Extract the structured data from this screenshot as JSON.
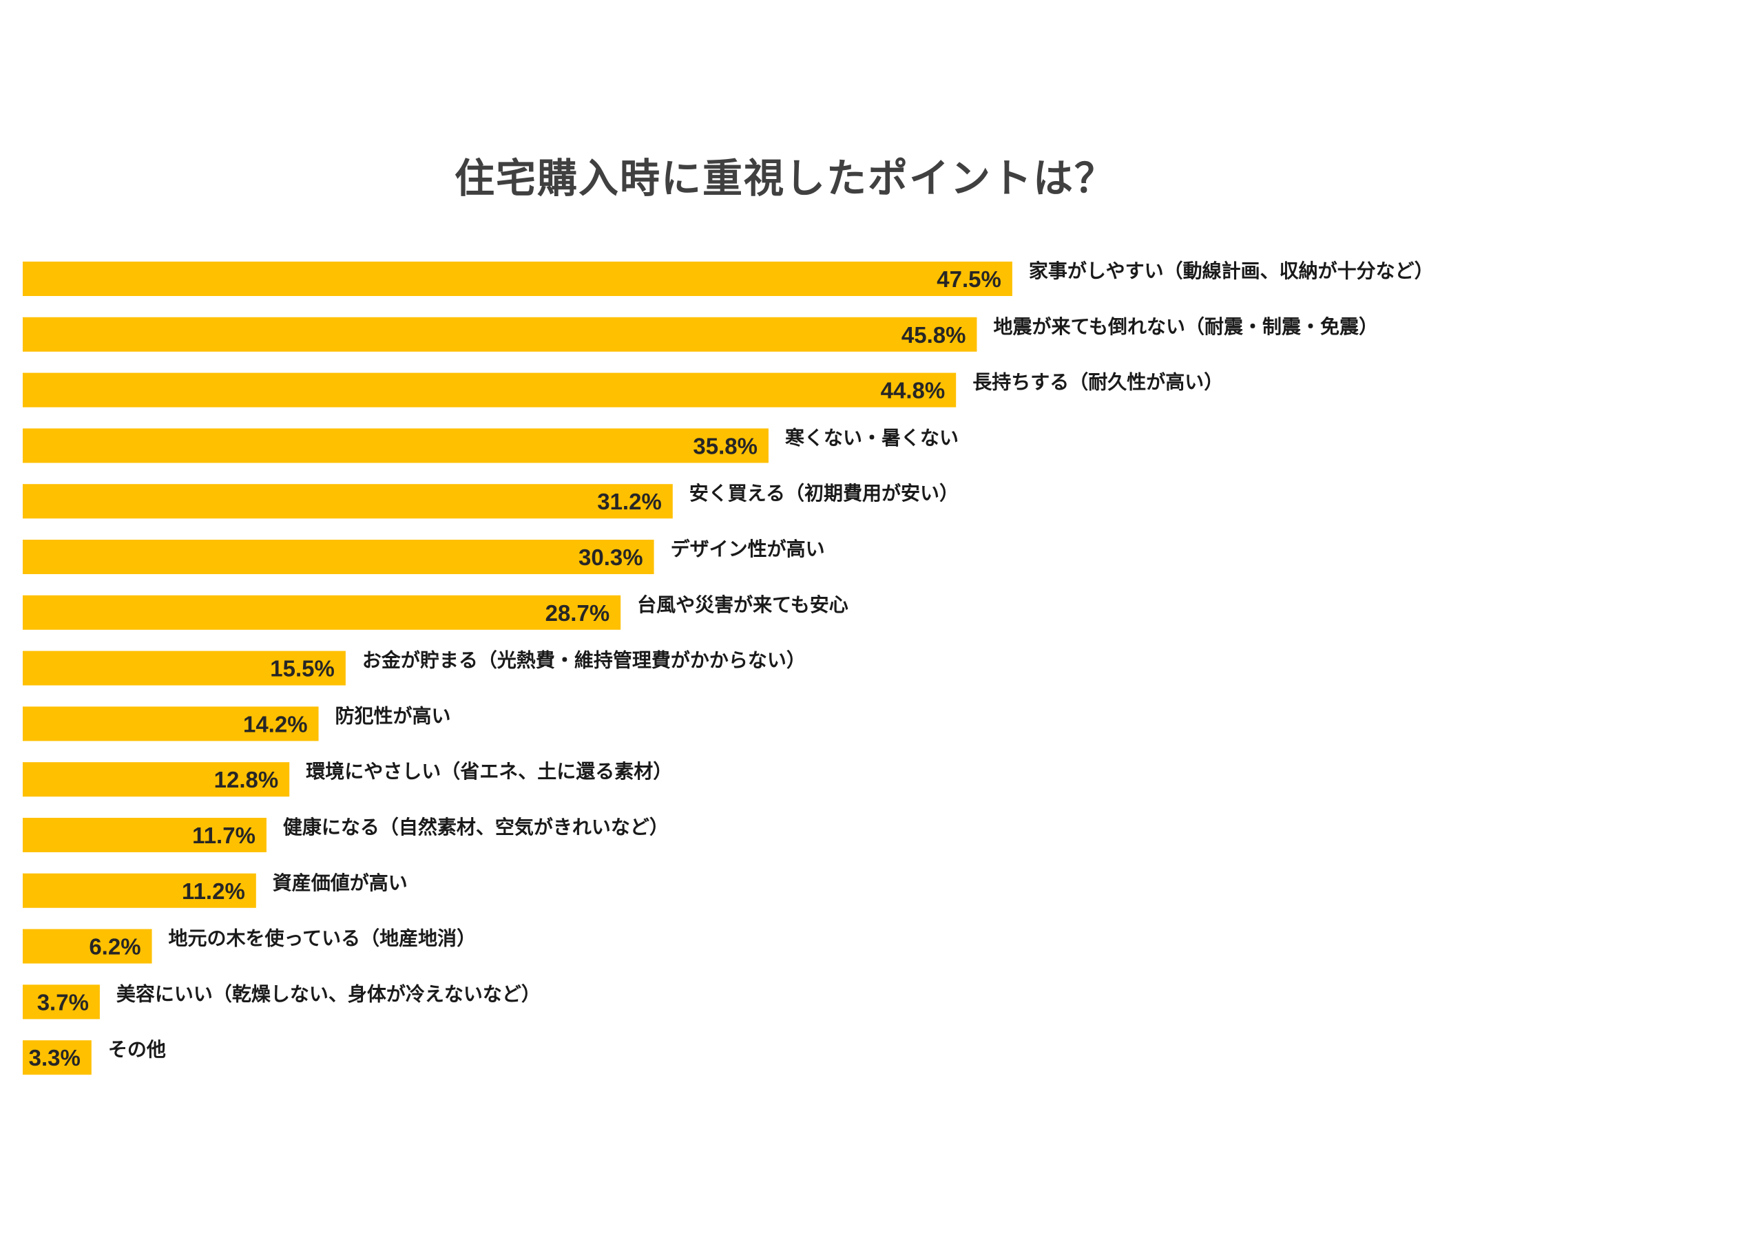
{
  "chart_data": {
    "type": "bar",
    "orientation": "horizontal",
    "title": "住宅購入時に重視したポイントは？",
    "categories": [
      "家事がしやすい（動線計画、収納が十分など）",
      "地震が来ても倒れない（耐震・制震・免震）",
      "長持ちする（耐久性が高い）",
      "寒くない・暑くない",
      "安く買える（初期費用が安い）",
      "デザイン性が高い",
      "台風や災害が来ても安心",
      "お金が貯まる（光熱費・維持管理費がかからない）",
      "防犯性が高い",
      "環境にやさしい（省エネ、土に還る素材）",
      "健康になる（自然素材、空気がきれいなど）",
      "資産価値が高い",
      "地元の木を使っている（地産地消）",
      "美容にいい（乾燥しない、身体が冷えないなど）",
      "その他"
    ],
    "values": [
      47.5,
      45.8,
      44.8,
      35.8,
      31.2,
      30.3,
      28.7,
      15.5,
      14.2,
      12.8,
      11.7,
      11.2,
      6.2,
      3.7,
      3.3
    ],
    "value_labels": [
      "47.5%",
      "45.8%",
      "44.8%",
      "35.8%",
      "31.2%",
      "30.3%",
      "28.7%",
      "15.5%",
      "14.2%",
      "12.8%",
      "11.7%",
      "11.2%",
      "6.2%",
      "3.7%",
      "3.3%"
    ],
    "unit": "%",
    "grid": false,
    "legend": "none",
    "bar_color": "#FFC000"
  }
}
